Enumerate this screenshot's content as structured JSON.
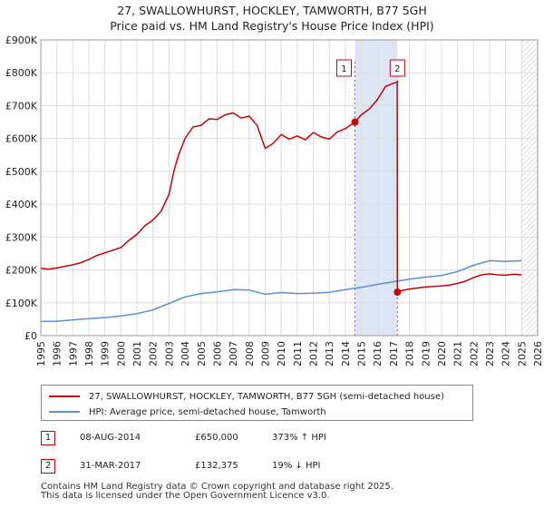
{
  "title": "27, SWALLOWHURST, HOCKLEY, TAMWORTH, B77 5GH",
  "subtitle": "Price paid vs. HM Land Registry's House Price Index (HPI)",
  "chart_data": {
    "type": "line",
    "xlim": [
      1995,
      2026
    ],
    "ylim": [
      0,
      900000
    ],
    "x_ticks": [
      1995,
      1996,
      1997,
      1998,
      1999,
      2000,
      2001,
      2002,
      2003,
      2004,
      2005,
      2006,
      2007,
      2008,
      2009,
      2010,
      2011,
      2012,
      2013,
      2014,
      2015,
      2016,
      2017,
      2018,
      2019,
      2020,
      2021,
      2022,
      2023,
      2024,
      2025,
      2026
    ],
    "y_ticks": [
      {
        "value": 0,
        "label": "£0"
      },
      {
        "value": 100000,
        "label": "£100K"
      },
      {
        "value": 200000,
        "label": "£200K"
      },
      {
        "value": 300000,
        "label": "£300K"
      },
      {
        "value": 400000,
        "label": "£400K"
      },
      {
        "value": 500000,
        "label": "£500K"
      },
      {
        "value": 600000,
        "label": "£600K"
      },
      {
        "value": 700000,
        "label": "£700K"
      },
      {
        "value": 800000,
        "label": "£800K"
      },
      {
        "value": 900000,
        "label": "£900K"
      }
    ],
    "shaded_span": {
      "start": 2014.6,
      "end": 2017.25
    },
    "forecast_hatch_start": 2025.0,
    "series": [
      {
        "name": "27, SWALLOWHURST, HOCKLEY, TAMWORTH, B77 5GH (semi-detached house)",
        "color": "#cc0000",
        "points": [
          [
            1995.0,
            205000
          ],
          [
            1995.5,
            202000
          ],
          [
            1996.0,
            206000
          ],
          [
            1996.5,
            211000
          ],
          [
            1997.0,
            216000
          ],
          [
            1997.5,
            222000
          ],
          [
            1998.0,
            232000
          ],
          [
            1998.5,
            244000
          ],
          [
            1999.0,
            252000
          ],
          [
            1999.5,
            260000
          ],
          [
            2000.0,
            268000
          ],
          [
            2000.5,
            290000
          ],
          [
            2001.0,
            308000
          ],
          [
            2001.5,
            335000
          ],
          [
            2002.0,
            352000
          ],
          [
            2002.5,
            378000
          ],
          [
            2003.0,
            430000
          ],
          [
            2003.3,
            500000
          ],
          [
            2003.6,
            550000
          ],
          [
            2004.0,
            600000
          ],
          [
            2004.5,
            635000
          ],
          [
            2005.0,
            640000
          ],
          [
            2005.5,
            660000
          ],
          [
            2006.0,
            658000
          ],
          [
            2006.5,
            672000
          ],
          [
            2007.0,
            678000
          ],
          [
            2007.5,
            662000
          ],
          [
            2008.0,
            668000
          ],
          [
            2008.5,
            640000
          ],
          [
            2009.0,
            570000
          ],
          [
            2009.5,
            585000
          ],
          [
            2010.0,
            612000
          ],
          [
            2010.5,
            598000
          ],
          [
            2011.0,
            608000
          ],
          [
            2011.5,
            596000
          ],
          [
            2012.0,
            618000
          ],
          [
            2012.5,
            605000
          ],
          [
            2013.0,
            598000
          ],
          [
            2013.5,
            620000
          ],
          [
            2014.0,
            630000
          ],
          [
            2014.6,
            650000
          ],
          [
            2015.0,
            672000
          ],
          [
            2015.5,
            690000
          ],
          [
            2016.0,
            718000
          ],
          [
            2016.5,
            758000
          ],
          [
            2017.0,
            768000
          ],
          [
            2017.24,
            772000
          ],
          [
            2017.25,
            132375
          ],
          [
            2017.5,
            137000
          ],
          [
            2018.0,
            142000
          ],
          [
            2018.5,
            145000
          ],
          [
            2019.0,
            148000
          ],
          [
            2019.5,
            150000
          ],
          [
            2020.0,
            151000
          ],
          [
            2020.5,
            154000
          ],
          [
            2021.0,
            159000
          ],
          [
            2021.5,
            166000
          ],
          [
            2022.0,
            177000
          ],
          [
            2022.5,
            185000
          ],
          [
            2023.0,
            188000
          ],
          [
            2023.5,
            185000
          ],
          [
            2024.0,
            184000
          ],
          [
            2024.5,
            187000
          ],
          [
            2025.0,
            185000
          ]
        ]
      },
      {
        "name": "HPI: Average price, semi-detached house, Tamworth",
        "color": "#5b8fd0",
        "points": [
          [
            1995.0,
            43000
          ],
          [
            1996.0,
            44000
          ],
          [
            1997.0,
            48000
          ],
          [
            1998.0,
            52000
          ],
          [
            1999.0,
            55000
          ],
          [
            2000.0,
            60000
          ],
          [
            2001.0,
            67000
          ],
          [
            2002.0,
            78000
          ],
          [
            2003.0,
            98000
          ],
          [
            2004.0,
            118000
          ],
          [
            2005.0,
            128000
          ],
          [
            2006.0,
            133000
          ],
          [
            2007.0,
            140000
          ],
          [
            2008.0,
            139000
          ],
          [
            2009.0,
            126000
          ],
          [
            2010.0,
            131000
          ],
          [
            2011.0,
            128000
          ],
          [
            2012.0,
            129000
          ],
          [
            2013.0,
            132000
          ],
          [
            2014.0,
            140000
          ],
          [
            2015.0,
            147000
          ],
          [
            2016.0,
            156000
          ],
          [
            2017.0,
            164000
          ],
          [
            2018.0,
            172000
          ],
          [
            2019.0,
            178000
          ],
          [
            2020.0,
            183000
          ],
          [
            2021.0,
            195000
          ],
          [
            2022.0,
            214000
          ],
          [
            2023.0,
            228000
          ],
          [
            2024.0,
            226000
          ],
          [
            2025.0,
            228000
          ]
        ]
      }
    ],
    "sale_markers": [
      {
        "label": "1",
        "year": 2014.6,
        "value": 650000
      },
      {
        "label": "2",
        "year": 2017.25,
        "value": 132375
      }
    ]
  },
  "legend": {
    "property_label": "27, SWALLOWHURST, HOCKLEY, TAMWORTH, B77 5GH (semi-detached house)",
    "hpi_label": "HPI: Average price, semi-detached house, Tamworth"
  },
  "transactions": [
    {
      "badge": "1",
      "date": "08-AUG-2014",
      "price": "£650,000",
      "hpi": "373% ↑ HPI"
    },
    {
      "badge": "2",
      "date": "31-MAR-2017",
      "price": "£132,375",
      "hpi": "19% ↓ HPI"
    }
  ],
  "footer": {
    "line1": "Contains HM Land Registry data © Crown copyright and database right 2025.",
    "line2": "This data is licensed under the Open Government Licence v3.0."
  },
  "colors": {
    "property": "#cc0000",
    "hpi": "#5b8fd0",
    "shade": "#dde6f7",
    "grid": "#dddddd"
  }
}
